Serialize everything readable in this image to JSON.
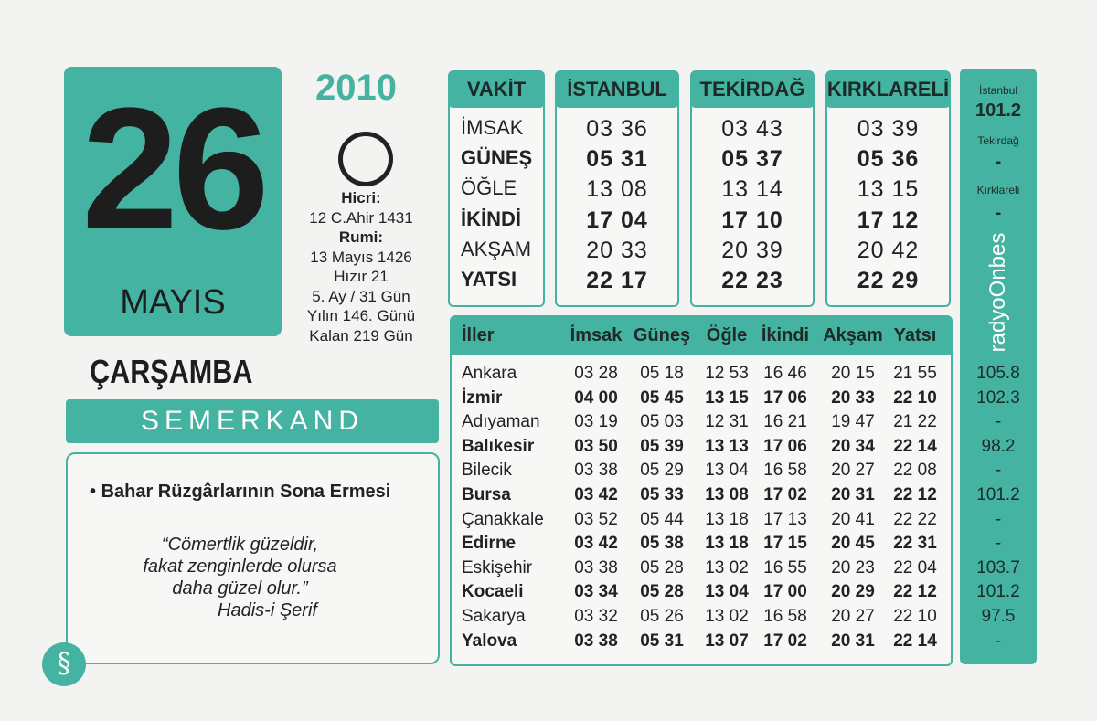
{
  "date": {
    "year": "2010",
    "day": "26",
    "month": "MAYIS",
    "weekday": "ÇARŞAMBA"
  },
  "info": [
    "Hicri:",
    "12 C.Ahir 1431",
    "Rumi:",
    "13 Mayıs 1426",
    "Hızır 21",
    "5. Ay / 31 Gün",
    "Yılın 146. Günü",
    "Kalan 219 Gün"
  ],
  "brand": "SEMERKAND",
  "note": "Bahar Rüzgârlarının Sona Ermesi",
  "quote": [
    "“Cömertlik güzeldir,",
    "fakat zenginlerde olursa",
    "daha güzel olur.”",
    "Hadis-i Şerif"
  ],
  "vakit_table": {
    "header": [
      "VAKİT",
      "İSTANBUL",
      "TEKİRDAĞ",
      "KIRKLARELİ"
    ],
    "rows": [
      [
        "İMSAK",
        "03 36",
        "03 43",
        "03 39"
      ],
      [
        "GÜNEŞ",
        "05 31",
        "05 37",
        "05 36"
      ],
      [
        "ÖĞLE",
        "13 08",
        "13 14",
        "13 15"
      ],
      [
        "İKİNDİ",
        "17 04",
        "17 10",
        "17 12"
      ],
      [
        "AKŞAM",
        "20 33",
        "20 39",
        "20 42"
      ],
      [
        "YATSI",
        "22 17",
        "22 23",
        "22 29"
      ]
    ]
  },
  "iller_table": {
    "header": [
      "İller",
      "İmsak",
      "Güneş",
      "Öğle",
      "İkindi",
      "Akşam",
      "Yatsı"
    ],
    "rows": [
      [
        "Ankara",
        "03 28",
        "05 18",
        "12 53",
        "16 46",
        "20 15",
        "21 55"
      ],
      [
        "İzmir",
        "04 00",
        "05 45",
        "13 15",
        "17 06",
        "20 33",
        "22 10"
      ],
      [
        "Adıyaman",
        "03 19",
        "05 03",
        "12 31",
        "16 21",
        "19 47",
        "21 22"
      ],
      [
        "Balıkesir",
        "03 50",
        "05 39",
        "13 13",
        "17 06",
        "20 34",
        "22 14"
      ],
      [
        "Bilecik",
        "03 38",
        "05 29",
        "13 04",
        "16 58",
        "20 27",
        "22 08"
      ],
      [
        "Bursa",
        "03 42",
        "05 33",
        "13 08",
        "17 02",
        "20 31",
        "22 12"
      ],
      [
        "Çanakkale",
        "03 52",
        "05 44",
        "13 18",
        "17 13",
        "20 41",
        "22 22"
      ],
      [
        "Edirne",
        "03 42",
        "05 38",
        "13 18",
        "17 15",
        "20 45",
        "22 31"
      ],
      [
        "Eskişehir",
        "03 38",
        "05 28",
        "13 02",
        "16 55",
        "20 23",
        "22 04"
      ],
      [
        "Kocaeli",
        "03 34",
        "05 28",
        "13 04",
        "17 00",
        "20 29",
        "22 12"
      ],
      [
        "Sakarya",
        "03 32",
        "05 26",
        "13 02",
        "16 58",
        "20 27",
        "22 10"
      ],
      [
        "Yalova",
        "03 38",
        "05 31",
        "13 07",
        "17 02",
        "20 31",
        "22 14"
      ]
    ]
  },
  "radio": {
    "top": [
      "İstanbul",
      "101.2",
      "Tekirdağ",
      "-",
      "Kırklareli",
      "-"
    ],
    "logo": "radyoOnbes",
    "frequencies": [
      "105.8",
      "102.3",
      "-",
      "98.2",
      "-",
      "101.2",
      "-",
      "-",
      "103.7",
      "101.2",
      "97.5",
      "-"
    ]
  }
}
